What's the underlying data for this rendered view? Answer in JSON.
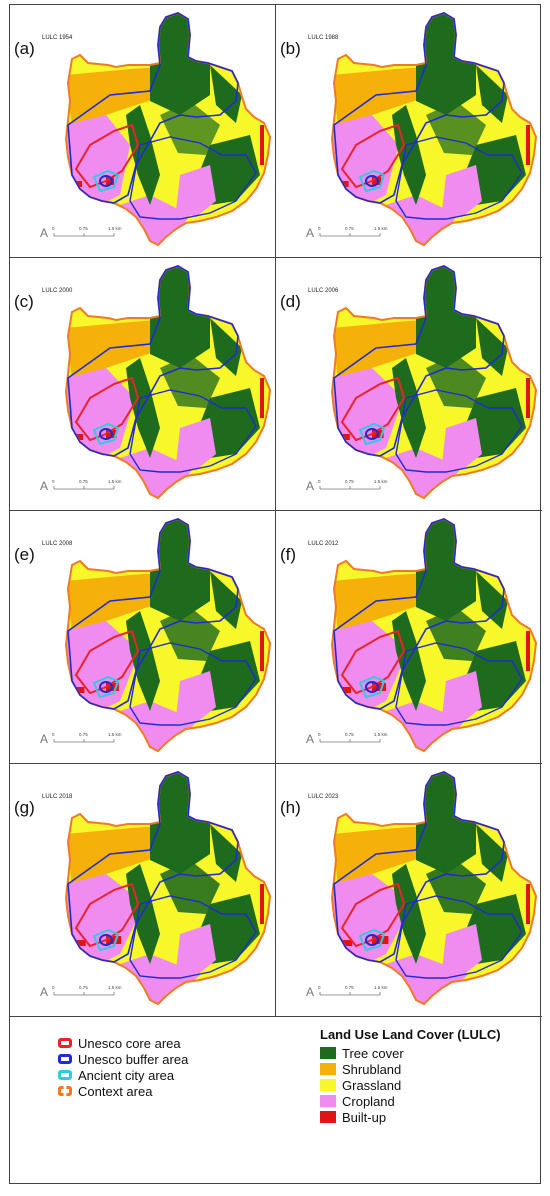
{
  "panels": [
    {
      "label": "(a)",
      "title": "LULC 1954"
    },
    {
      "label": "(b)",
      "title": "LULC 1988"
    },
    {
      "label": "(c)",
      "title": "LULC 2000"
    },
    {
      "label": "(d)",
      "title": "LULC 2006"
    },
    {
      "label": "(e)",
      "title": "LULC 2008"
    },
    {
      "label": "(f)",
      "title": "LULC 2012"
    },
    {
      "label": "(g)",
      "title": "LULC 2018"
    },
    {
      "label": "(h)",
      "title": "LULC 2023"
    }
  ],
  "scalebar": {
    "ticks": [
      "0",
      "0.75",
      "1.5 km"
    ]
  },
  "legend": {
    "boundaries": [
      {
        "label": "Unesco core area",
        "color": "#e8242b"
      },
      {
        "label": "Unesco buffer area",
        "color": "#1f2bd0"
      },
      {
        "label": "Ancient city area",
        "color": "#35c9e0"
      },
      {
        "label": "Context area",
        "color": "#f07a23"
      }
    ],
    "lulc_title": "Land Use Land Cover (LULC)",
    "lulc": [
      {
        "label": "Tree cover",
        "color": "#1e6b1e"
      },
      {
        "label": "Shrubland",
        "color": "#f5b10a"
      },
      {
        "label": "Grassland",
        "color": "#f7f72a"
      },
      {
        "label": "Cropland",
        "color": "#f08cf0"
      },
      {
        "label": "Built-up",
        "color": "#e01414"
      }
    ]
  }
}
